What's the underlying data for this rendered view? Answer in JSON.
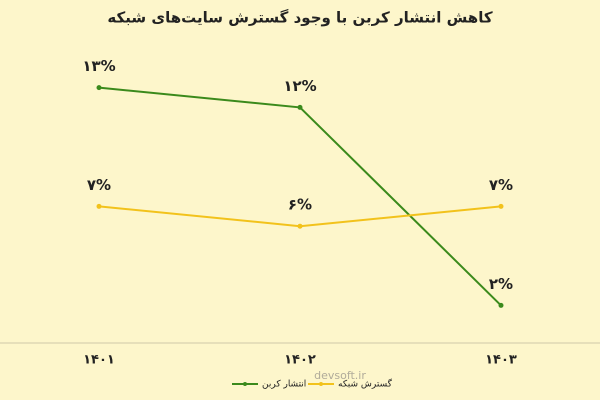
{
  "chart_data": {
    "type": "line",
    "title": "کاهش انتشار کربن با وجود گسترش سایت‌های شبکه",
    "categories": [
      "۱۴۰۱",
      "۱۴۰۲",
      "۱۴۰۳"
    ],
    "series": [
      {
        "name": "انتشار کربن",
        "color": "#3b8a1c",
        "values": [
          13,
          12,
          2
        ],
        "value_labels": [
          "۱۳%",
          "۱۲%",
          "۲%"
        ]
      },
      {
        "name": "گسترش شبکه",
        "color": "#f2c21b",
        "values": [
          7,
          6,
          7
        ],
        "value_labels": [
          "۷%",
          "۶%",
          "۷%"
        ]
      }
    ],
    "watermark": "devsoft.ir"
  }
}
